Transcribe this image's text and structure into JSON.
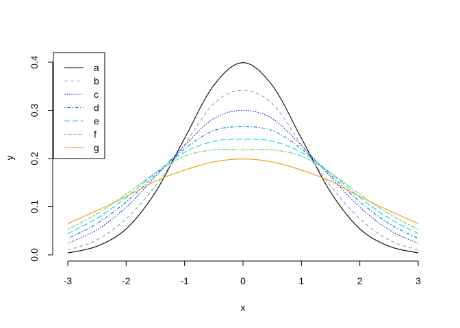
{
  "chart_data": {
    "type": "line",
    "xlabel": "x",
    "ylabel": "y",
    "xlim": [
      -3,
      3
    ],
    "ylim": [
      0,
      0.4
    ],
    "x_ticks": [
      "-3",
      "-2",
      "-1",
      "0",
      "1",
      "2",
      "3"
    ],
    "y_ticks": [
      "0.0",
      "0.1",
      "0.2",
      "0.3",
      "0.4"
    ],
    "legend_position": "top-left",
    "x": [
      -3,
      -2.5,
      -2,
      -1.5,
      -1,
      -0.5,
      0,
      0.5,
      1,
      1.5,
      2,
      2.5,
      3
    ],
    "series": [
      {
        "name": "a",
        "color": "#000000",
        "dash": "solid",
        "values": [
          0.004,
          0.018,
          0.054,
          0.13,
          0.242,
          0.352,
          0.399,
          0.352,
          0.242,
          0.13,
          0.054,
          0.018,
          0.004
        ]
      },
      {
        "name": "b",
        "color": "#999999",
        "dash": "dashed",
        "values": [
          0.01,
          0.031,
          0.075,
          0.143,
          0.229,
          0.314,
          0.342,
          0.314,
          0.229,
          0.143,
          0.075,
          0.031,
          0.01
        ]
      },
      {
        "name": "c",
        "color": "#0000cc",
        "dash": "dotted",
        "values": [
          0.024,
          0.052,
          0.099,
          0.162,
          0.227,
          0.283,
          0.3,
          0.283,
          0.227,
          0.162,
          0.099,
          0.052,
          0.024
        ]
      },
      {
        "name": "d",
        "color": "#0077bb",
        "dash": "dotdash",
        "values": [
          0.034,
          0.065,
          0.11,
          0.166,
          0.22,
          0.258,
          0.266,
          0.258,
          0.22,
          0.166,
          0.11,
          0.065,
          0.034
        ]
      },
      {
        "name": "e",
        "color": "#00ccee",
        "dash": "longdash",
        "values": [
          0.044,
          0.076,
          0.119,
          0.17,
          0.213,
          0.236,
          0.24,
          0.236,
          0.213,
          0.17,
          0.119,
          0.076,
          0.044
        ]
      },
      {
        "name": "f",
        "color": "#66cc66",
        "dash": "twodash",
        "values": [
          0.053,
          0.085,
          0.126,
          0.17,
          0.205,
          0.218,
          0.218,
          0.218,
          0.205,
          0.17,
          0.126,
          0.085,
          0.053
        ]
      },
      {
        "name": "g",
        "color": "#ee9900",
        "dash": "solid",
        "values": [
          0.065,
          0.092,
          0.121,
          0.153,
          0.176,
          0.193,
          0.199,
          0.193,
          0.176,
          0.153,
          0.121,
          0.092,
          0.065
        ]
      }
    ]
  }
}
